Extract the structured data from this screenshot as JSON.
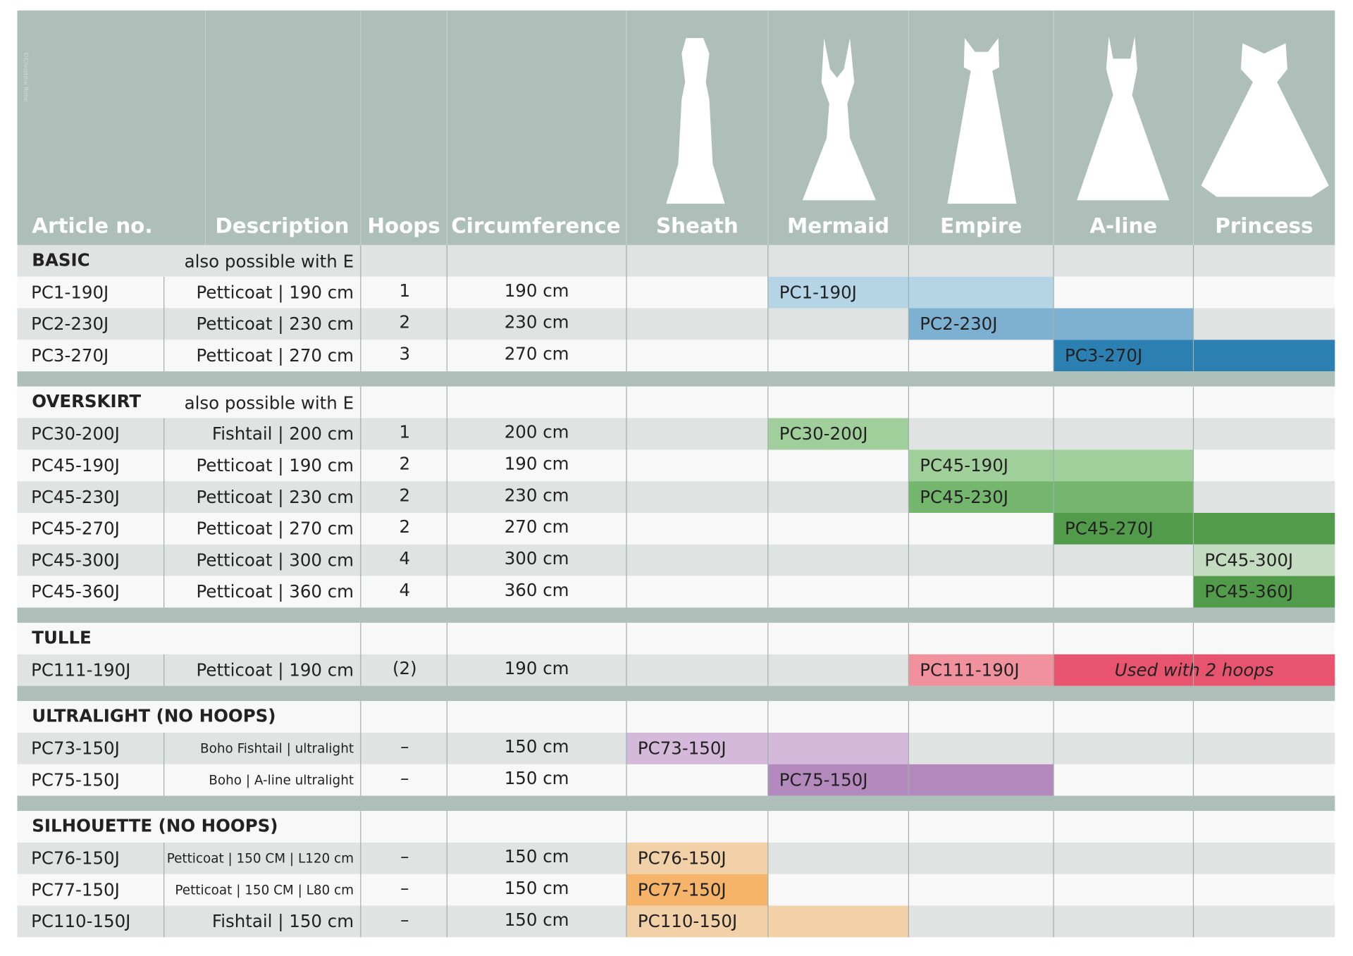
{
  "watermark": "©Christina Rohe",
  "columns": [
    "Article no.",
    "Description",
    "Hoops",
    "Circumference",
    "Sheath",
    "Mermaid",
    "Empire",
    "A-line",
    "Princess"
  ],
  "sections": [
    {
      "title": "BASIC",
      "note": "also possible with E",
      "rows": [
        {
          "article": "PC1-190J",
          "description": "Petticoat | 190 cm",
          "hoops": "1",
          "circumference": "190 cm",
          "bars": [
            {
              "label": "PC1-190J",
              "from": 1,
              "to": 2,
              "color": "#b5d5e7"
            }
          ]
        },
        {
          "article": "PC2-230J",
          "description": "Petticoat | 230 cm",
          "hoops": "2",
          "circumference": "230 cm",
          "bars": [
            {
              "label": "PC2-230J",
              "from": 2,
              "to": 3,
              "color": "#7db0d1"
            }
          ]
        },
        {
          "article": "PC3-270J",
          "description": "Petticoat | 270 cm",
          "hoops": "3",
          "circumference": "270 cm",
          "bars": [
            {
              "label": "PC3-270J",
              "from": 3,
              "to": 4,
              "color": "#2c80b1"
            }
          ]
        }
      ]
    },
    {
      "title": "OVERSKIRT",
      "note": "also possible with E",
      "rows": [
        {
          "article": "PC30-200J",
          "description": "Fishtail | 200 cm",
          "hoops": "1",
          "circumference": "200 cm",
          "bars": [
            {
              "label": "PC30-200J",
              "from": 1,
              "to": 1,
              "color": "#a0cf9b"
            }
          ]
        },
        {
          "article": "PC45-190J",
          "description": "Petticoat | 190 cm",
          "hoops": "2",
          "circumference": "190 cm",
          "bars": [
            {
              "label": "PC45-190J",
              "from": 2,
              "to": 3,
              "color": "#a0cf9b"
            }
          ]
        },
        {
          "article": "PC45-230J",
          "description": "Petticoat | 230 cm",
          "hoops": "2",
          "circumference": "230 cm",
          "bars": [
            {
              "label": "PC45-230J",
              "from": 2,
              "to": 3,
              "color": "#74b66e"
            }
          ]
        },
        {
          "article": "PC45-270J",
          "description": "Petticoat | 270 cm",
          "hoops": "2",
          "circumference": "270 cm",
          "bars": [
            {
              "label": "PC45-270J",
              "from": 3,
              "to": 4,
              "color": "#519b4b"
            }
          ]
        },
        {
          "article": "PC45-300J",
          "description": "Petticoat | 300 cm",
          "hoops": "4",
          "circumference": "300 cm",
          "bars": [
            {
              "label": "PC45-300J",
              "from": 4,
              "to": 4,
              "color": "#c3dcc0"
            }
          ]
        },
        {
          "article": "PC45-360J",
          "description": "Petticoat | 360 cm",
          "hoops": "4",
          "circumference": "360 cm",
          "bars": [
            {
              "label": "PC45-360J",
              "from": 4,
              "to": 4,
              "color": "#519b4b"
            }
          ]
        }
      ]
    },
    {
      "title": "TULLE",
      "rows": [
        {
          "article": "PC111-190J",
          "description": "Petticoat | 190 cm",
          "hoops": "(2)",
          "circumference": "190 cm",
          "bars": [
            {
              "label": "PC111-190J",
              "from": 2,
              "to": 2,
              "color": "#f2919e"
            },
            {
              "label": "Used with 2 hoops",
              "from": 3,
              "to": 4,
              "color": "#e8546e",
              "italic": true
            }
          ]
        }
      ]
    },
    {
      "title": "ULTRALIGHT (NO HOOPS)",
      "rows": [
        {
          "article": "PC73-150J",
          "description": "Boho Fishtail | ultralight",
          "hoops": "–",
          "circumference": "150 cm",
          "bars": [
            {
              "label": "PC73-150J",
              "from": 0,
              "to": 1,
              "color": "#d5b9da"
            }
          ]
        },
        {
          "article": "PC75-150J",
          "description": "Boho | A-line ultralight",
          "hoops": "–",
          "circumference": "150 cm",
          "bars": [
            {
              "label": "PC75-150J",
              "from": 1,
              "to": 2,
              "color": "#b48abe"
            }
          ]
        }
      ]
    },
    {
      "title": "SILHOUETTE (NO HOOPS)",
      "rows": [
        {
          "article": "PC76-150J",
          "description": "Petticoat | 150 CM | L120 cm",
          "hoops": "–",
          "circumference": "150 cm",
          "bars": [
            {
              "label": "PC76-150J",
              "from": 0,
              "to": 0,
              "color": "#f2d0a8"
            }
          ]
        },
        {
          "article": "PC77-150J",
          "description": "Petticoat | 150 CM | L80 cm",
          "hoops": "–",
          "circumference": "150 cm",
          "bars": [
            {
              "label": "PC77-150J",
              "from": 0,
              "to": 0,
              "color": "#f5b469"
            }
          ]
        },
        {
          "article": "PC110-150J",
          "description": "Fishtail | 150 cm",
          "hoops": "–",
          "circumference": "150 cm",
          "bars": [
            {
              "label": "PC110-150J",
              "from": 0,
              "to": 1,
              "color": "#f2d0a8"
            }
          ]
        }
      ]
    }
  ]
}
